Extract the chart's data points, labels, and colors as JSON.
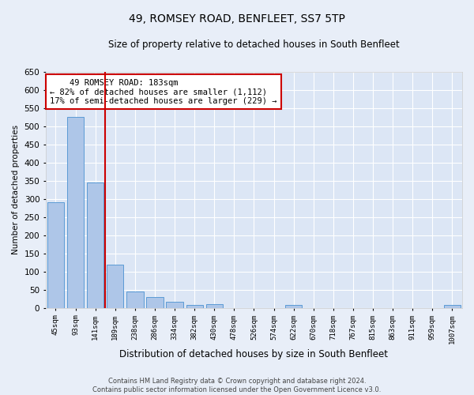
{
  "title": "49, ROMSEY ROAD, BENFLEET, SS7 5TP",
  "subtitle": "Size of property relative to detached houses in South Benfleet",
  "xlabel": "Distribution of detached houses by size in South Benfleet",
  "ylabel": "Number of detached properties",
  "footer_line1": "Contains HM Land Registry data © Crown copyright and database right 2024.",
  "footer_line2": "Contains public sector information licensed under the Open Government Licence v3.0.",
  "bin_labels": [
    "45sqm",
    "93sqm",
    "141sqm",
    "189sqm",
    "238sqm",
    "286sqm",
    "334sqm",
    "382sqm",
    "430sqm",
    "478sqm",
    "526sqm",
    "574sqm",
    "622sqm",
    "670sqm",
    "718sqm",
    "767sqm",
    "815sqm",
    "863sqm",
    "911sqm",
    "959sqm",
    "1007sqm"
  ],
  "bar_values": [
    290,
    525,
    345,
    120,
    46,
    30,
    17,
    8,
    10,
    0,
    0,
    0,
    8,
    0,
    0,
    0,
    0,
    0,
    0,
    0,
    8
  ],
  "bar_color": "#aec6e8",
  "bar_edge_color": "#5b9bd5",
  "vline_x_index": 2.5,
  "annotation_text_line1": "    49 ROMSEY ROAD: 183sqm",
  "annotation_text_line2": "← 82% of detached houses are smaller (1,112)",
  "annotation_text_line3": "17% of semi-detached houses are larger (229) →",
  "annotation_box_color": "#ffffff",
  "annotation_box_edge": "#cc0000",
  "vline_color": "#cc0000",
  "ylim": [
    0,
    650
  ],
  "yticks": [
    0,
    50,
    100,
    150,
    200,
    250,
    300,
    350,
    400,
    450,
    500,
    550,
    600,
    650
  ],
  "bg_color": "#e8eef8",
  "plot_bg_color": "#dce6f5"
}
